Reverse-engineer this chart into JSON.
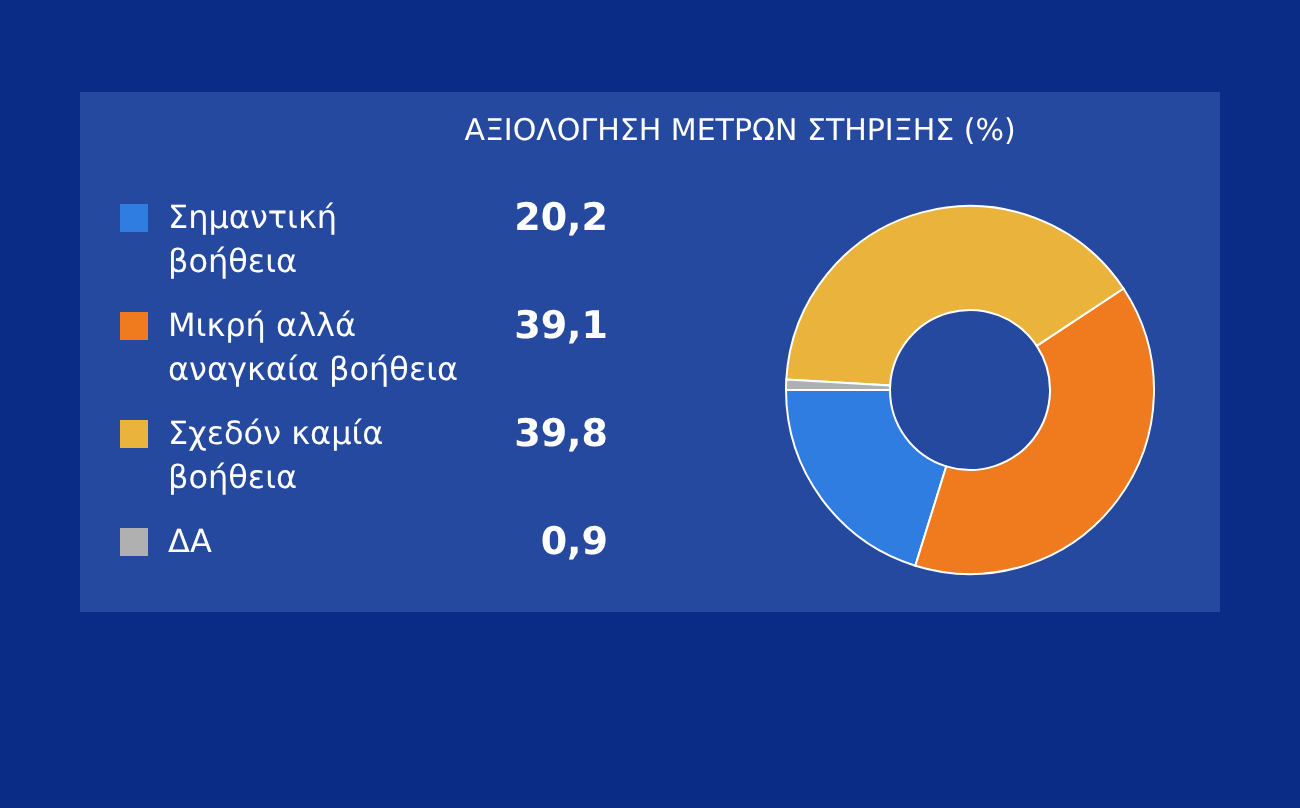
{
  "chart_data": {
    "type": "donut",
    "title": "ΑΞΙΟΛΟΓΗΣΗ  ΜΕΤΡΩΝ  ΣΤΗΡΙΞΗΣ (%)",
    "categories": [
      "Σημαντική βοήθεια",
      "Μικρή αλλά αναγκαία βοήθεια",
      "Σχεδόν καμία βοήθεια",
      "ΔΑ"
    ],
    "values": [
      20.2,
      39.1,
      39.8,
      0.9
    ],
    "colors": [
      "#2f7de0",
      "#f07a1e",
      "#eab43c",
      "#b0b0b0"
    ],
    "value_labels": [
      "20,2",
      "39,1",
      "39,8",
      "0,9"
    ],
    "legend": "left"
  }
}
